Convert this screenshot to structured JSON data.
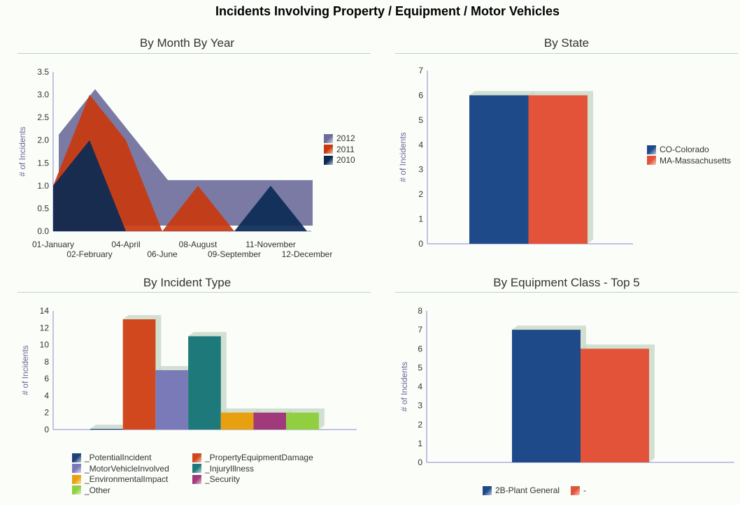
{
  "title": "Incidents Involving Property / Equipment / Motor Vehicles",
  "chart_data": [
    {
      "type": "area",
      "title": "By Month By Year",
      "ylabel": "# of Incidents",
      "ylim": [
        0,
        3.5
      ],
      "yticks": [
        "0.0",
        "0.5",
        "1.0",
        "1.5",
        "2.0",
        "2.5",
        "3.0",
        "3.5"
      ],
      "categories": [
        "01-January",
        "02-February",
        "04-April",
        "06-June",
        "08-August",
        "09-September",
        "11-November",
        "12-December"
      ],
      "series": [
        {
          "name": "2012",
          "color": "#6c6c9a",
          "values": [
            2,
            3,
            2,
            1,
            1,
            1,
            1,
            1
          ]
        },
        {
          "name": "2011",
          "color": "#c8380e",
          "values": [
            1,
            3,
            2,
            0,
            1,
            0,
            0,
            0
          ]
        },
        {
          "name": "2010",
          "color": "#0a2a55",
          "values": [
            1,
            2,
            0,
            0,
            0,
            0,
            1,
            0
          ]
        }
      ],
      "legend": "right"
    },
    {
      "type": "bar",
      "title": "By State",
      "ylabel": "# of Incidents",
      "ylim": [
        0,
        7
      ],
      "yticks": [
        "0",
        "1",
        "2",
        "3",
        "4",
        "5",
        "6",
        "7"
      ],
      "categories": [
        "CO-Colorado",
        "MA-Massachusetts"
      ],
      "values": [
        6,
        6
      ],
      "colors": [
        "#1e4a8a",
        "#e2533a"
      ],
      "legend": "right"
    },
    {
      "type": "bar",
      "title": "By Incident Type",
      "ylabel": "# of Incidents",
      "ylim": [
        0,
        14
      ],
      "yticks": [
        "0",
        "2",
        "4",
        "6",
        "8",
        "10",
        "12",
        "14"
      ],
      "categories": [
        "_PotentialIncident",
        "_PropertyEquipmentDamage",
        "_MotorVehicleInvolved",
        "_InjuryIllness",
        "_EnvironmentalImpact",
        "_Security",
        "_Other"
      ],
      "values": [
        0,
        13,
        7,
        11,
        2,
        2,
        2
      ],
      "colors": [
        "#1e3f7a",
        "#d2481e",
        "#7a7ab8",
        "#1e7a7a",
        "#e8a010",
        "#a03a7a",
        "#90d040"
      ],
      "legend": "bottom"
    },
    {
      "type": "bar",
      "title": "By Equipment Class - Top 5",
      "ylabel": "# of Incidents",
      "ylim": [
        0,
        8
      ],
      "yticks": [
        "0",
        "1",
        "2",
        "3",
        "4",
        "5",
        "6",
        "7",
        "8"
      ],
      "categories": [
        "2B-Plant General",
        "-"
      ],
      "values": [
        7,
        6
      ],
      "colors": [
        "#1e4a8a",
        "#e2533a"
      ],
      "legend": "bottom"
    }
  ]
}
